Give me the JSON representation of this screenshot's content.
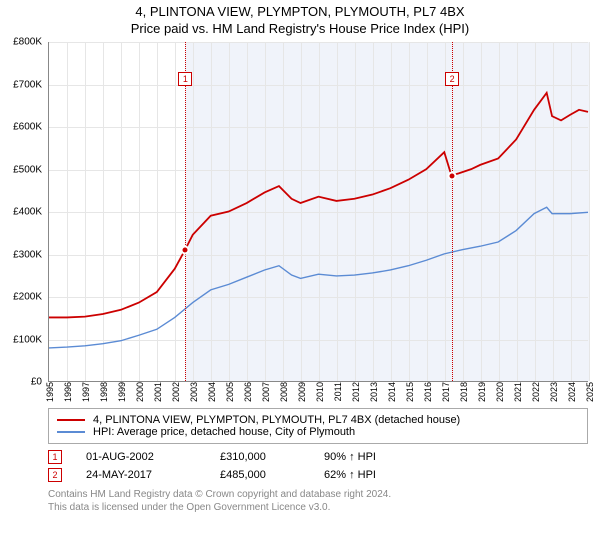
{
  "title_line1": "4, PLINTONA VIEW, PLYMPTON, PLYMOUTH, PL7 4BX",
  "title_line2": "Price paid vs. HM Land Registry's House Price Index (HPI)",
  "chart": {
    "type": "line",
    "background_color": "#ffffff",
    "grid_color": "#e6e6e6",
    "shade_color": "#f0f3fa",
    "shade_x_from": 2002.58,
    "shade_x_to": 2025.0,
    "xlim": [
      1995,
      2025
    ],
    "ylim": [
      0,
      800000
    ],
    "ytick_step": 100000,
    "yticks": [
      "£0",
      "£100K",
      "£200K",
      "£300K",
      "£400K",
      "£500K",
      "£600K",
      "£700K",
      "£800K"
    ],
    "xticks": [
      1995,
      1996,
      1997,
      1998,
      1999,
      2000,
      2001,
      2002,
      2003,
      2004,
      2005,
      2006,
      2007,
      2008,
      2009,
      2010,
      2011,
      2012,
      2013,
      2014,
      2015,
      2016,
      2017,
      2018,
      2019,
      2020,
      2021,
      2022,
      2023,
      2024,
      2025
    ],
    "event_lines": [
      {
        "x": 2002.58,
        "label": "1",
        "label_y_offset": 30
      },
      {
        "x": 2017.4,
        "label": "2",
        "label_y_offset": 30
      }
    ],
    "series": [
      {
        "name": "price_paid",
        "color": "#cc0000",
        "line_width": 1.8,
        "points": [
          [
            1995.0,
            150000
          ],
          [
            1996.0,
            150000
          ],
          [
            1997.0,
            152000
          ],
          [
            1998.0,
            158000
          ],
          [
            1999.0,
            168000
          ],
          [
            2000.0,
            185000
          ],
          [
            2001.0,
            210000
          ],
          [
            2002.0,
            265000
          ],
          [
            2002.58,
            310000
          ],
          [
            2003.0,
            345000
          ],
          [
            2004.0,
            390000
          ],
          [
            2005.0,
            400000
          ],
          [
            2006.0,
            420000
          ],
          [
            2007.0,
            445000
          ],
          [
            2007.8,
            460000
          ],
          [
            2008.5,
            430000
          ],
          [
            2009.0,
            420000
          ],
          [
            2010.0,
            435000
          ],
          [
            2011.0,
            425000
          ],
          [
            2012.0,
            430000
          ],
          [
            2013.0,
            440000
          ],
          [
            2014.0,
            455000
          ],
          [
            2015.0,
            475000
          ],
          [
            2016.0,
            500000
          ],
          [
            2017.0,
            540000
          ],
          [
            2017.4,
            485000
          ],
          [
            2017.8,
            490000
          ],
          [
            2018.5,
            500000
          ],
          [
            2019.0,
            510000
          ],
          [
            2020.0,
            525000
          ],
          [
            2021.0,
            570000
          ],
          [
            2022.0,
            640000
          ],
          [
            2022.7,
            680000
          ],
          [
            2023.0,
            625000
          ],
          [
            2023.5,
            615000
          ],
          [
            2024.0,
            628000
          ],
          [
            2024.5,
            640000
          ],
          [
            2025.0,
            635000
          ]
        ],
        "markers": [
          {
            "x": 2002.58,
            "y": 310000
          },
          {
            "x": 2017.4,
            "y": 485000
          }
        ]
      },
      {
        "name": "hpi",
        "color": "#5b8bd4",
        "line_width": 1.4,
        "points": [
          [
            1995.0,
            78000
          ],
          [
            1996.0,
            80000
          ],
          [
            1997.0,
            83000
          ],
          [
            1998.0,
            88000
          ],
          [
            1999.0,
            95000
          ],
          [
            2000.0,
            108000
          ],
          [
            2001.0,
            122000
          ],
          [
            2002.0,
            150000
          ],
          [
            2003.0,
            185000
          ],
          [
            2004.0,
            215000
          ],
          [
            2005.0,
            228000
          ],
          [
            2006.0,
            245000
          ],
          [
            2007.0,
            262000
          ],
          [
            2007.8,
            272000
          ],
          [
            2008.5,
            250000
          ],
          [
            2009.0,
            242000
          ],
          [
            2010.0,
            252000
          ],
          [
            2011.0,
            248000
          ],
          [
            2012.0,
            250000
          ],
          [
            2013.0,
            255000
          ],
          [
            2014.0,
            262000
          ],
          [
            2015.0,
            272000
          ],
          [
            2016.0,
            285000
          ],
          [
            2017.0,
            300000
          ],
          [
            2018.0,
            310000
          ],
          [
            2019.0,
            318000
          ],
          [
            2020.0,
            328000
          ],
          [
            2021.0,
            355000
          ],
          [
            2022.0,
            395000
          ],
          [
            2022.7,
            410000
          ],
          [
            2023.0,
            395000
          ],
          [
            2024.0,
            395000
          ],
          [
            2025.0,
            398000
          ]
        ]
      }
    ]
  },
  "legend": {
    "items": [
      {
        "color": "#cc0000",
        "label": "4, PLINTONA VIEW, PLYMPTON, PLYMOUTH, PL7 4BX (detached house)"
      },
      {
        "color": "#5b8bd4",
        "label": "HPI: Average price, detached house, City of Plymouth"
      }
    ]
  },
  "sales": [
    {
      "marker": "1",
      "date": "01-AUG-2002",
      "price": "£310,000",
      "hpi": "90% ↑ HPI"
    },
    {
      "marker": "2",
      "date": "24-MAY-2017",
      "price": "£485,000",
      "hpi": "62% ↑ HPI"
    }
  ],
  "footer_line1": "Contains HM Land Registry data © Crown copyright and database right 2024.",
  "footer_line2": "This data is licensed under the Open Government Licence v3.0."
}
